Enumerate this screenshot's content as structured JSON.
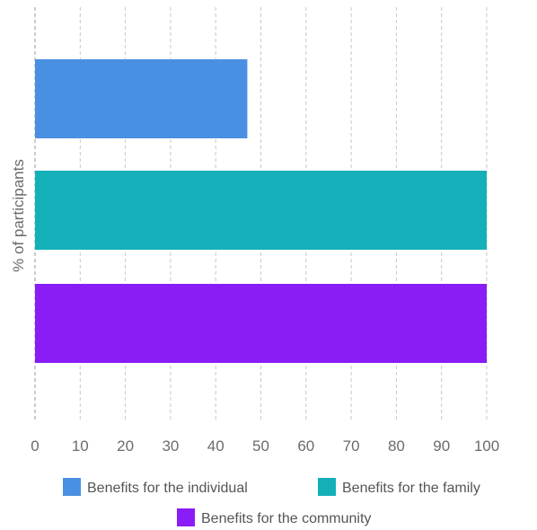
{
  "chart_data": {
    "type": "bar",
    "orientation": "horizontal",
    "ylabel": "% of participants",
    "xlim": [
      0,
      100
    ],
    "x_ticks": [
      0,
      10,
      20,
      30,
      40,
      50,
      60,
      70,
      80,
      90,
      100
    ],
    "grid": true,
    "legend_position": "bottom",
    "series": [
      {
        "name": "Benefits for the individual",
        "value": 47,
        "color": "#4a90e2"
      },
      {
        "name": "Benefits for the family",
        "value": 100,
        "color": "#13b0b9"
      },
      {
        "name": "Benefits for the community",
        "value": 100,
        "color": "#8a1cf6"
      }
    ]
  }
}
